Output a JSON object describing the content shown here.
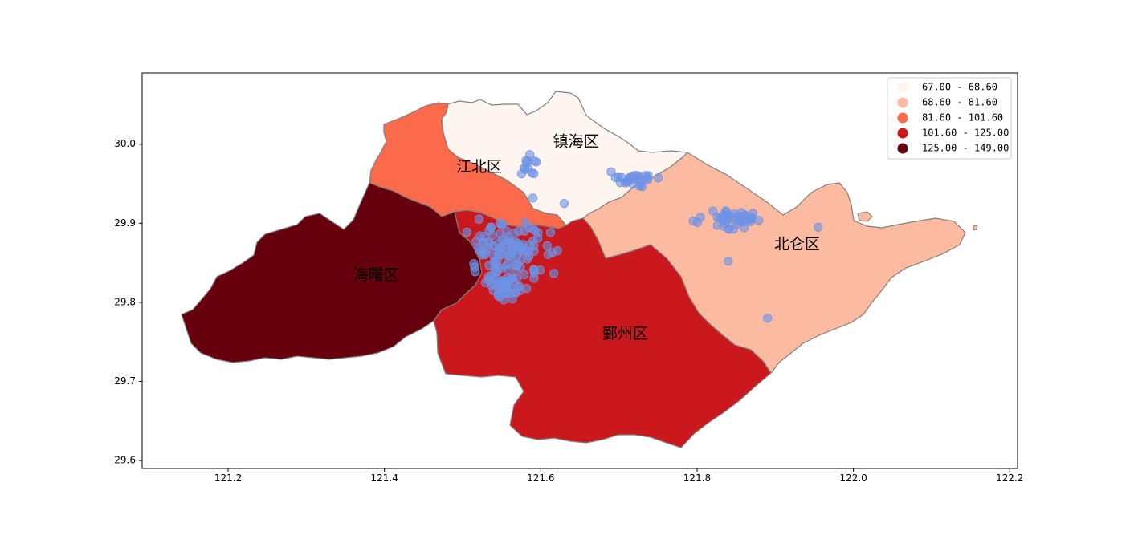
{
  "chart_data": {
    "type": "choropleth",
    "xlim": [
      121.09,
      122.21
    ],
    "ylim": [
      29.59,
      30.09
    ],
    "xticks": [
      "121.2",
      "121.4",
      "121.6",
      "121.8",
      "122.0",
      "122.2"
    ],
    "yticks": [
      "29.6",
      "29.7",
      "29.8",
      "29.9",
      "30.0"
    ],
    "xtick_values": [
      121.2,
      121.4,
      121.6,
      121.8,
      122.0,
      122.2
    ],
    "ytick_values": [
      29.6,
      29.7,
      29.8,
      29.9,
      30.0
    ],
    "legend": [
      {
        "label": "67.00 - 68.60",
        "color": "#fff5f0"
      },
      {
        "label": "68.60 - 81.60",
        "color": "#fcbba1"
      },
      {
        "label": "81.60 - 101.60",
        "color": "#fb6a4a"
      },
      {
        "label": "101.60 - 125.00",
        "color": "#cb181d"
      },
      {
        "label": "125.00 - 149.00",
        "color": "#67000d"
      }
    ],
    "districts": [
      {
        "name": "镇海区",
        "color": "#fff5f0",
        "label_at": [
          121.645,
          30.003
        ]
      },
      {
        "name": "江北区",
        "color": "#fb6a4a",
        "label_at": [
          121.521,
          29.971
        ]
      },
      {
        "name": "北仑区",
        "color": "#fcbba1",
        "label_at": [
          121.928,
          29.873
        ]
      },
      {
        "name": "鄞州区",
        "color": "#cb181d",
        "label_at": [
          121.708,
          29.76
        ]
      },
      {
        "name": "海曙区",
        "color": "#67000d",
        "label_at": [
          121.389,
          29.834
        ]
      }
    ],
    "point_color": "#6495ed",
    "point_clusters": [
      {
        "center": [
          121.56,
          29.86
        ],
        "spread": [
          0.035,
          0.032
        ],
        "count": 120
      },
      {
        "center": [
          121.552,
          29.82
        ],
        "spread": [
          0.018,
          0.016
        ],
        "count": 35
      },
      {
        "center": [
          121.72,
          29.955
        ],
        "spread": [
          0.018,
          0.006
        ],
        "count": 30
      },
      {
        "center": [
          121.84,
          29.905
        ],
        "spread": [
          0.03,
          0.012
        ],
        "count": 45
      },
      {
        "center": [
          121.585,
          29.97
        ],
        "spread": [
          0.012,
          0.012
        ],
        "count": 12
      }
    ],
    "single_points": [
      [
        121.89,
        29.78
      ],
      [
        121.955,
        29.895
      ],
      [
        121.84,
        29.852
      ],
      [
        121.59,
        29.932
      ],
      [
        121.57,
        29.87
      ],
      [
        121.615,
        29.863
      ],
      [
        121.69,
        29.965
      ],
      [
        121.63,
        29.925
      ]
    ]
  }
}
